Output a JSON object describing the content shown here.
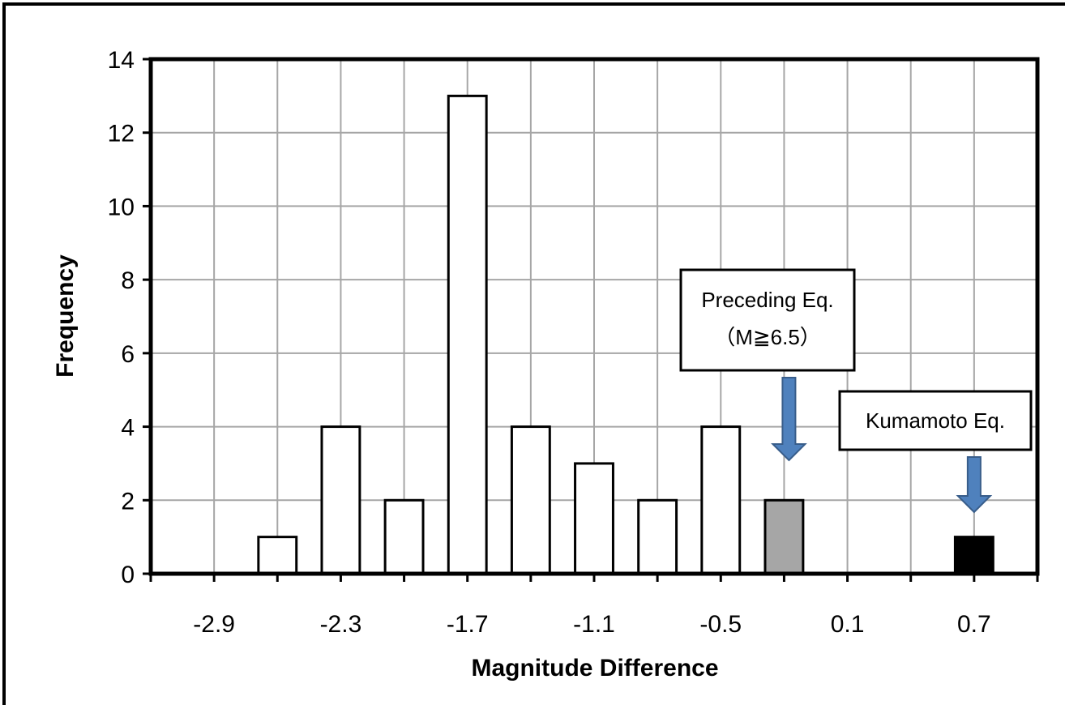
{
  "chart_data": {
    "type": "bar",
    "title": "",
    "xlabel": "Magnitude Difference",
    "ylabel": "Frequency",
    "ylim": [
      0,
      14
    ],
    "yticks": [
      0,
      2,
      4,
      6,
      8,
      10,
      12,
      14
    ],
    "xlim": [
      -3.2,
      1.0
    ],
    "xtick_labels": [
      "-2.9",
      "-2.3",
      "-1.7",
      "-1.1",
      "-0.5",
      "0.1",
      "0.7"
    ],
    "grid": true,
    "bars": [
      {
        "x": -2.9,
        "value": 0,
        "color": "#ffffff"
      },
      {
        "x": -2.6,
        "value": 1,
        "color": "#ffffff"
      },
      {
        "x": -2.3,
        "value": 4,
        "color": "#ffffff"
      },
      {
        "x": -2.0,
        "value": 2,
        "color": "#ffffff"
      },
      {
        "x": -1.7,
        "value": 13,
        "color": "#ffffff"
      },
      {
        "x": -1.4,
        "value": 4,
        "color": "#ffffff"
      },
      {
        "x": -1.1,
        "value": 3,
        "color": "#ffffff"
      },
      {
        "x": -0.8,
        "value": 2,
        "color": "#ffffff"
      },
      {
        "x": -0.5,
        "value": 4,
        "color": "#ffffff"
      },
      {
        "x": -0.2,
        "value": 2,
        "color": "#a6a6a6"
      },
      {
        "x": 0.1,
        "value": 0,
        "color": "#ffffff"
      },
      {
        "x": 0.4,
        "value": 0,
        "color": "#ffffff"
      },
      {
        "x": 0.7,
        "value": 1,
        "color": "#000000"
      }
    ],
    "annotations": [
      {
        "name": "preceding-eq",
        "lines": [
          "Preceding Eq.",
          "（M≧6.5）"
        ],
        "points_to_x": -0.2
      },
      {
        "name": "kumamoto-eq",
        "lines": [
          "Kumamoto Eq."
        ],
        "points_to_x": 0.7
      }
    ],
    "arrow_color": "#4f81bd"
  }
}
